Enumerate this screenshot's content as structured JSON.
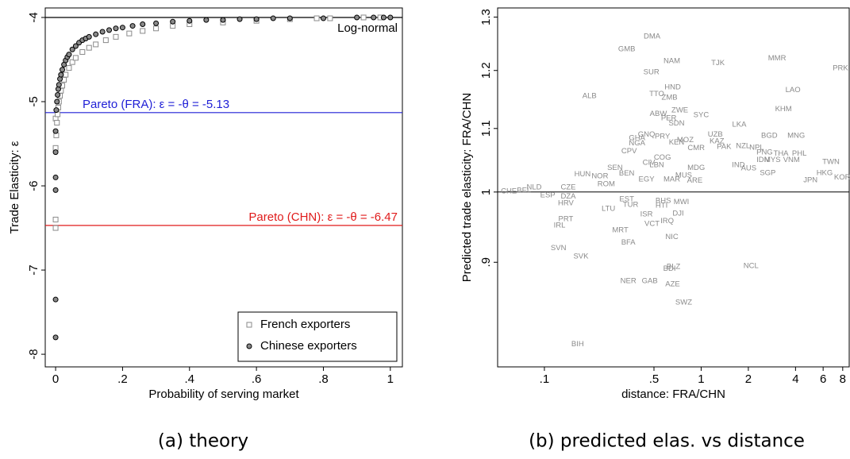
{
  "chart_data": [
    {
      "type": "scatter",
      "caption": "(a) theory",
      "x_label": "Probability of serving market",
      "y_label": "Trade Elasticity: ε",
      "xlim": [
        -0.031,
        1.036
      ],
      "ylim": [
        -8.15,
        -3.887
      ],
      "xticks": [
        0,
        {
          "value": 0.2,
          "label": ".2"
        },
        {
          "value": 0.4,
          "label": ".4"
        },
        {
          "value": 0.6,
          "label": ".6"
        },
        {
          "value": 0.8,
          "label": ".8"
        },
        1
      ],
      "yticks": [
        -4,
        -5,
        -6,
        -7,
        -8
      ],
      "legend": "lower right",
      "reference_lines": [
        {
          "value": -4,
          "label": "Log-normal",
          "color": "#000000"
        },
        {
          "value": -5.13,
          "label": "Pareto (FRA): ε = -θ = -5.13",
          "color": "#1f1fd6"
        },
        {
          "value": -6.47,
          "label": "Pareto (CHN): ε = -θ = -6.47",
          "color": "#e01b1b"
        }
      ],
      "series": [
        {
          "name": "French exporters",
          "marker": "square",
          "color": "#8a8a8a",
          "x": [
            0,
            0,
            0,
            0,
            0.002,
            0.004,
            0.006,
            0.008,
            0.01,
            0.013,
            0.016,
            0.02,
            0.025,
            0.03,
            0.04,
            0.05,
            0.06,
            0.08,
            0.1,
            0.12,
            0.15,
            0.18,
            0.22,
            0.26,
            0.3,
            0.35,
            0.4,
            0.5,
            0.6,
            0.7,
            0.78,
            0.82,
            0.92,
            0.97
          ],
          "values": [
            -6.5,
            -6.4,
            -5.55,
            -5.2,
            -5.4,
            -5.25,
            -5.15,
            -5.07,
            -5.0,
            -4.93,
            -4.87,
            -4.81,
            -4.74,
            -4.68,
            -4.6,
            -4.53,
            -4.48,
            -4.41,
            -4.36,
            -4.32,
            -4.27,
            -4.23,
            -4.19,
            -4.16,
            -4.13,
            -4.1,
            -4.08,
            -4.06,
            -4.04,
            -4.02,
            -4.01,
            -4.01,
            -4.0,
            -4.0
          ]
        },
        {
          "name": "Chinese exporters",
          "marker": "circle",
          "color": "#8a8a8a",
          "x": [
            0,
            0,
            0,
            0,
            0,
            0,
            0.002,
            0.004,
            0.006,
            0.008,
            0.01,
            0.013,
            0.016,
            0.02,
            0.025,
            0.03,
            0.035,
            0.04,
            0.05,
            0.06,
            0.07,
            0.08,
            0.09,
            0.1,
            0.12,
            0.14,
            0.16,
            0.18,
            0.2,
            0.23,
            0.26,
            0.3,
            0.35,
            0.4,
            0.45,
            0.5,
            0.55,
            0.6,
            0.65,
            0.7,
            0.8,
            0.9,
            0.95,
            0.98,
            1.0
          ],
          "values": [
            -7.8,
            -7.35,
            -6.05,
            -5.9,
            -5.6,
            -5.35,
            -5.1,
            -5.0,
            -4.92,
            -4.85,
            -4.8,
            -4.73,
            -4.68,
            -4.62,
            -4.56,
            -4.51,
            -4.47,
            -4.44,
            -4.38,
            -4.34,
            -4.3,
            -4.27,
            -4.25,
            -4.23,
            -4.2,
            -4.17,
            -4.15,
            -4.13,
            -4.12,
            -4.1,
            -4.08,
            -4.07,
            -4.05,
            -4.04,
            -4.03,
            -4.03,
            -4.02,
            -4.02,
            -4.01,
            -4.01,
            -4.01,
            -4.0,
            -4.0,
            -4.0,
            -4.0
          ]
        }
      ]
    },
    {
      "type": "label-scatter",
      "caption": "(b) predicted elas. vs distance",
      "x_label": "distance: FRA/CHN",
      "y_label": "Predicted trade elasticity: FRA/CHN",
      "xlog": true,
      "ylog": true,
      "xlim": [
        0.0503,
        8.8
      ],
      "ylim": [
        0.7693,
        1.318
      ],
      "xticks": [
        {
          "value": 0.1,
          "label": ".1"
        },
        {
          "value": 0.5,
          "label": ".5"
        },
        1,
        2,
        4,
        6,
        8
      ],
      "yticks": [
        {
          "value": 0.9,
          "label": ".9"
        },
        1,
        1.1,
        1.2,
        1.3
      ],
      "reference_line": 1,
      "label_color": "#8a8a8a",
      "labels": [
        "DMA",
        "GMB",
        "NAM",
        "SUR",
        "TJK",
        "MMR",
        "PRK",
        "ALB",
        "HND",
        "TTO",
        "ZMB",
        "LAO",
        "KHM",
        "ABW",
        "ZWE",
        "SYC",
        "PER",
        "SDN",
        "LKA",
        "BGD",
        "MNG",
        "GNQ",
        "PRY",
        "MOZ",
        "UZB",
        "GHA",
        "KEN",
        "KAZ",
        "NGA",
        "PAK",
        "NZL",
        "NPL",
        "CMR",
        "PNG",
        "THA",
        "PHL",
        "CPV",
        "TWN",
        "IDN",
        "MYS",
        "VNM",
        "IND",
        "AUS",
        "HKG",
        "KOR",
        "SGP",
        "JPN",
        "MUS",
        "MDG",
        "HUN",
        "NOR",
        "ROM",
        "CHE",
        "NLD",
        "BEL",
        "CZE",
        "ESP",
        "DZA",
        "HRV",
        "SVN",
        "SVK",
        "IRL",
        "PRT",
        "ISR",
        "DJI",
        "MWI",
        "MRT",
        "VCT",
        "IRQ",
        "BFA",
        "NIC",
        "BLZ",
        "BDI",
        "NCL",
        "NER",
        "GAB",
        "AZE",
        "SWZ",
        "BIH",
        "LTU",
        "TUR",
        "BHS",
        "HTI",
        "EST",
        "EGY",
        "BEN",
        "SEN",
        "COG",
        "LBN",
        "MAR",
        "ARE",
        "CIV"
      ],
      "x": [
        0.486,
        0.335,
        0.65,
        0.481,
        1.28,
        3.05,
        7.74,
        0.194,
        0.658,
        0.521,
        0.628,
        3.85,
        3.35,
        0.533,
        0.731,
        1.0,
        0.621,
        0.697,
        1.75,
        2.72,
        4.04,
        0.448,
        0.566,
        0.792,
        1.23,
        0.39,
        0.697,
        1.26,
        0.39,
        1.4,
        1.85,
        2.26,
        0.93,
        2.54,
        3.23,
        4.23,
        0.347,
        6.73,
        2.48,
        2.85,
        3.77,
        1.73,
        2.01,
        6.13,
        7.94,
        2.66,
        4.98,
        0.774,
        0.93,
        0.175,
        0.226,
        0.248,
        0.0593,
        0.086,
        0.0741,
        0.142,
        0.105,
        0.142,
        0.137,
        0.123,
        0.171,
        0.125,
        0.137,
        0.448,
        0.714,
        0.748,
        0.305,
        0.486,
        0.607,
        0.343,
        0.65,
        0.666,
        0.628,
        2.08,
        0.343,
        0.47,
        0.658,
        0.774,
        0.163,
        0.256,
        0.355,
        0.573,
        0.559,
        0.335,
        0.448,
        0.335,
        0.282,
        0.566,
        0.521,
        0.65,
        0.911,
        0.464
      ],
      "y": [
        1.263,
        1.239,
        1.217,
        1.197,
        1.213,
        1.222,
        1.204,
        1.155,
        1.17,
        1.158,
        1.152,
        1.165,
        1.132,
        1.124,
        1.13,
        1.122,
        1.117,
        1.108,
        1.106,
        1.088,
        1.088,
        1.09,
        1.087,
        1.081,
        1.09,
        1.084,
        1.077,
        1.079,
        1.076,
        1.07,
        1.071,
        1.069,
        1.068,
        1.061,
        1.059,
        1.059,
        1.063,
        1.046,
        1.049,
        1.049,
        1.049,
        1.041,
        1.036,
        1.029,
        1.022,
        1.029,
        1.018,
        1.025,
        1.037,
        1.027,
        1.024,
        1.012,
        1.001,
        1.007,
        1.002,
        1.007,
        0.995,
        0.993,
        0.983,
        0.919,
        0.908,
        0.951,
        0.96,
        0.967,
        0.968,
        0.985,
        0.944,
        0.953,
        0.957,
        0.927,
        0.935,
        0.894,
        0.891,
        0.895,
        0.875,
        0.875,
        0.871,
        0.847,
        0.796,
        0.975,
        0.981,
        0.987,
        0.98,
        0.989,
        1.019,
        1.028,
        1.037,
        1.053,
        1.041,
        1.019,
        1.017,
        1.045
      ]
    }
  ]
}
